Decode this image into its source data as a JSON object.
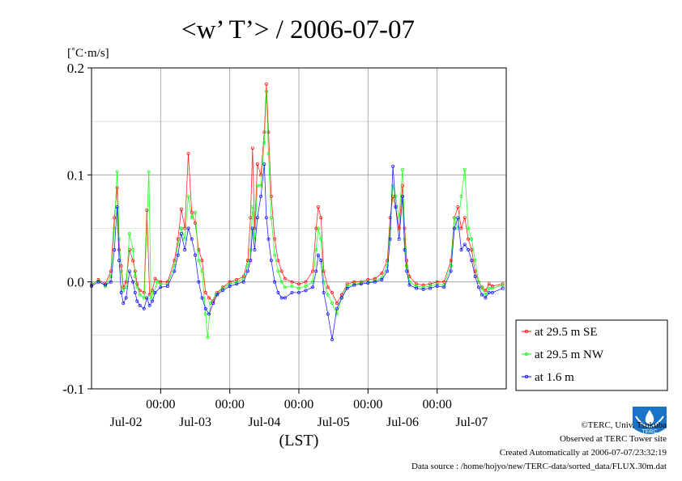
{
  "chart_data": {
    "type": "line",
    "title": "<w’ T’> / 2006-07-07",
    "ylabel": "[˚C·m/s]",
    "xlabel": "(LST)",
    "ylim": [
      -0.1,
      0.2
    ],
    "yticks": [
      "-0.1",
      "0.0",
      "0.1",
      "0.2"
    ],
    "xlim": [
      0,
      6
    ],
    "x_units": "days since 2006-07-01 00:00 LST",
    "time_ticks": [
      "00:00",
      "00:00",
      "00:00",
      "00:00",
      "00:00"
    ],
    "date_ticks": [
      "Jul-02",
      "Jul-03",
      "Jul-04",
      "Jul-05",
      "Jul-06",
      "Jul-07"
    ],
    "grid": true,
    "legend_position": "right",
    "series": [
      {
        "name": "at 29.5 m SE",
        "color": "#ff0000",
        "points": [
          [
            0.0,
            -0.003
          ],
          [
            0.1,
            0.002
          ],
          [
            0.2,
            -0.002
          ],
          [
            0.28,
            0.01
          ],
          [
            0.33,
            0.06
          ],
          [
            0.37,
            0.088
          ],
          [
            0.4,
            0.03
          ],
          [
            0.43,
            0.015
          ],
          [
            0.46,
            -0.005
          ],
          [
            0.5,
            0.0
          ],
          [
            0.55,
            0.03
          ],
          [
            0.6,
            0.02
          ],
          [
            0.63,
            0.01
          ],
          [
            0.66,
            -0.002
          ],
          [
            0.7,
            -0.008
          ],
          [
            0.76,
            -0.01
          ],
          [
            0.8,
            0.067
          ],
          [
            0.84,
            -0.012
          ],
          [
            0.88,
            -0.008
          ],
          [
            0.92,
            0.003
          ],
          [
            1.0,
            0.0
          ],
          [
            1.1,
            0.0
          ],
          [
            1.2,
            0.02
          ],
          [
            1.25,
            0.04
          ],
          [
            1.3,
            0.068
          ],
          [
            1.35,
            0.05
          ],
          [
            1.4,
            0.12
          ],
          [
            1.45,
            0.065
          ],
          [
            1.5,
            0.055
          ],
          [
            1.55,
            0.03
          ],
          [
            1.6,
            0.02
          ],
          [
            1.65,
            -0.01
          ],
          [
            1.7,
            -0.015
          ],
          [
            1.76,
            -0.018
          ],
          [
            1.82,
            -0.01
          ],
          [
            1.9,
            -0.005
          ],
          [
            2.0,
            0.0
          ],
          [
            2.1,
            0.002
          ],
          [
            2.2,
            0.005
          ],
          [
            2.26,
            0.02
          ],
          [
            2.3,
            0.06
          ],
          [
            2.33,
            0.125
          ],
          [
            2.36,
            0.05
          ],
          [
            2.4,
            0.11
          ],
          [
            2.45,
            0.1
          ],
          [
            2.5,
            0.14
          ],
          [
            2.53,
            0.185
          ],
          [
            2.56,
            0.14
          ],
          [
            2.6,
            0.08
          ],
          [
            2.65,
            0.04
          ],
          [
            2.7,
            0.02
          ],
          [
            2.75,
            0.01
          ],
          [
            2.8,
            0.003
          ],
          [
            2.9,
            0.0
          ],
          [
            3.0,
            -0.002
          ],
          [
            3.1,
            0.0
          ],
          [
            3.2,
            0.01
          ],
          [
            3.25,
            0.05
          ],
          [
            3.28,
            0.07
          ],
          [
            3.32,
            0.06
          ],
          [
            3.36,
            0.01
          ],
          [
            3.42,
            -0.005
          ],
          [
            3.48,
            -0.01
          ],
          [
            3.55,
            -0.02
          ],
          [
            3.62,
            -0.012
          ],
          [
            3.7,
            -0.002
          ],
          [
            3.8,
            0.0
          ],
          [
            3.9,
            0.0
          ],
          [
            4.0,
            0.002
          ],
          [
            4.1,
            0.003
          ],
          [
            4.2,
            0.008
          ],
          [
            4.28,
            0.02
          ],
          [
            4.32,
            0.06
          ],
          [
            4.36,
            0.08
          ],
          [
            4.4,
            0.07
          ],
          [
            4.45,
            0.05
          ],
          [
            4.5,
            0.09
          ],
          [
            4.53,
            0.05
          ],
          [
            4.56,
            0.02
          ],
          [
            4.6,
            0.005
          ],
          [
            4.7,
            -0.002
          ],
          [
            4.8,
            -0.003
          ],
          [
            4.9,
            -0.002
          ],
          [
            5.0,
            0.0
          ],
          [
            5.1,
            0.0
          ],
          [
            5.2,
            0.02
          ],
          [
            5.25,
            0.06
          ],
          [
            5.3,
            0.07
          ],
          [
            5.35,
            0.05
          ],
          [
            5.4,
            0.06
          ],
          [
            5.45,
            0.04
          ],
          [
            5.5,
            0.03
          ],
          [
            5.55,
            0.01
          ],
          [
            5.6,
            0.0
          ],
          [
            5.65,
            -0.005
          ],
          [
            5.7,
            -0.008
          ],
          [
            5.75,
            -0.002
          ],
          [
            5.8,
            -0.004
          ],
          [
            5.95,
            -0.002
          ]
        ]
      },
      {
        "name": "at 29.5 m NW",
        "color": "#00ff00",
        "points": [
          [
            0.0,
            -0.002
          ],
          [
            0.1,
            0.001
          ],
          [
            0.2,
            -0.004
          ],
          [
            0.28,
            0.005
          ],
          [
            0.33,
            0.05
          ],
          [
            0.37,
            0.103
          ],
          [
            0.4,
            0.04
          ],
          [
            0.43,
            0.01
          ],
          [
            0.46,
            -0.008
          ],
          [
            0.5,
            -0.005
          ],
          [
            0.55,
            0.045
          ],
          [
            0.6,
            0.03
          ],
          [
            0.63,
            0.005
          ],
          [
            0.66,
            -0.005
          ],
          [
            0.7,
            -0.012
          ],
          [
            0.76,
            -0.015
          ],
          [
            0.83,
            0.103
          ],
          [
            0.86,
            -0.016
          ],
          [
            0.9,
            -0.01
          ],
          [
            0.95,
            0.0
          ],
          [
            1.0,
            -0.002
          ],
          [
            1.1,
            -0.002
          ],
          [
            1.2,
            0.015
          ],
          [
            1.25,
            0.035
          ],
          [
            1.3,
            0.05
          ],
          [
            1.35,
            0.04
          ],
          [
            1.4,
            0.08
          ],
          [
            1.45,
            0.06
          ],
          [
            1.5,
            0.065
          ],
          [
            1.55,
            0.02
          ],
          [
            1.6,
            0.01
          ],
          [
            1.65,
            -0.03
          ],
          [
            1.68,
            -0.052
          ],
          [
            1.72,
            -0.02
          ],
          [
            1.8,
            -0.012
          ],
          [
            1.9,
            -0.006
          ],
          [
            2.0,
            -0.002
          ],
          [
            2.1,
            0.0
          ],
          [
            2.2,
            0.003
          ],
          [
            2.26,
            0.015
          ],
          [
            2.3,
            0.03
          ],
          [
            2.33,
            0.07
          ],
          [
            2.36,
            0.04
          ],
          [
            2.4,
            0.09
          ],
          [
            2.45,
            0.09
          ],
          [
            2.5,
            0.13
          ],
          [
            2.53,
            0.178
          ],
          [
            2.56,
            0.12
          ],
          [
            2.6,
            0.06
          ],
          [
            2.65,
            0.025
          ],
          [
            2.7,
            0.01
          ],
          [
            2.75,
            0.0
          ],
          [
            2.8,
            -0.005
          ],
          [
            2.9,
            -0.004
          ],
          [
            3.0,
            -0.006
          ],
          [
            3.1,
            -0.004
          ],
          [
            3.2,
            0.0
          ],
          [
            3.25,
            0.03
          ],
          [
            3.28,
            0.05
          ],
          [
            3.32,
            0.04
          ],
          [
            3.36,
            0.0
          ],
          [
            3.42,
            -0.012
          ],
          [
            3.48,
            -0.02
          ],
          [
            3.55,
            -0.03
          ],
          [
            3.62,
            -0.015
          ],
          [
            3.7,
            -0.004
          ],
          [
            3.8,
            -0.002
          ],
          [
            3.9,
            -0.001
          ],
          [
            4.0,
            0.0
          ],
          [
            4.1,
            0.001
          ],
          [
            4.2,
            0.004
          ],
          [
            4.28,
            0.015
          ],
          [
            4.32,
            0.05
          ],
          [
            4.36,
            0.09
          ],
          [
            4.4,
            0.08
          ],
          [
            4.45,
            0.06
          ],
          [
            4.5,
            0.105
          ],
          [
            4.53,
            0.04
          ],
          [
            4.56,
            0.015
          ],
          [
            4.6,
            0.0
          ],
          [
            4.7,
            -0.004
          ],
          [
            4.8,
            -0.005
          ],
          [
            4.9,
            -0.004
          ],
          [
            5.0,
            -0.002
          ],
          [
            5.1,
            -0.003
          ],
          [
            5.2,
            0.015
          ],
          [
            5.25,
            0.06
          ],
          [
            5.3,
            0.05
          ],
          [
            5.35,
            0.08
          ],
          [
            5.4,
            0.105
          ],
          [
            5.45,
            0.05
          ],
          [
            5.5,
            0.04
          ],
          [
            5.55,
            0.02
          ],
          [
            5.6,
            0.0
          ],
          [
            5.65,
            -0.006
          ],
          [
            5.7,
            -0.012
          ],
          [
            5.75,
            -0.006
          ],
          [
            5.8,
            -0.006
          ],
          [
            5.95,
            -0.003
          ]
        ]
      },
      {
        "name": "at 1.6 m",
        "color": "#0000ff",
        "points": [
          [
            0.0,
            -0.004
          ],
          [
            0.1,
            0.0
          ],
          [
            0.2,
            -0.003
          ],
          [
            0.28,
            0.0
          ],
          [
            0.33,
            0.03
          ],
          [
            0.37,
            0.07
          ],
          [
            0.4,
            0.02
          ],
          [
            0.43,
            -0.01
          ],
          [
            0.46,
            -0.02
          ],
          [
            0.5,
            -0.015
          ],
          [
            0.55,
            0.01
          ],
          [
            0.6,
            0.0
          ],
          [
            0.63,
            -0.01
          ],
          [
            0.66,
            -0.018
          ],
          [
            0.7,
            -0.022
          ],
          [
            0.76,
            -0.025
          ],
          [
            0.8,
            -0.015
          ],
          [
            0.84,
            -0.022
          ],
          [
            0.88,
            -0.018
          ],
          [
            0.92,
            -0.01
          ],
          [
            1.0,
            -0.005
          ],
          [
            1.1,
            -0.004
          ],
          [
            1.2,
            0.01
          ],
          [
            1.25,
            0.025
          ],
          [
            1.3,
            0.045
          ],
          [
            1.35,
            0.03
          ],
          [
            1.4,
            0.05
          ],
          [
            1.45,
            0.04
          ],
          [
            1.5,
            0.025
          ],
          [
            1.55,
            0.0
          ],
          [
            1.6,
            -0.015
          ],
          [
            1.65,
            -0.025
          ],
          [
            1.7,
            -0.03
          ],
          [
            1.76,
            -0.02
          ],
          [
            1.82,
            -0.012
          ],
          [
            1.9,
            -0.008
          ],
          [
            2.0,
            -0.004
          ],
          [
            2.1,
            -0.002
          ],
          [
            2.2,
            0.0
          ],
          [
            2.26,
            0.01
          ],
          [
            2.3,
            0.02
          ],
          [
            2.33,
            0.05
          ],
          [
            2.36,
            0.03
          ],
          [
            2.4,
            0.06
          ],
          [
            2.45,
            0.08
          ],
          [
            2.5,
            0.11
          ],
          [
            2.53,
            0.06
          ],
          [
            2.56,
            0.04
          ],
          [
            2.6,
            0.02
          ],
          [
            2.65,
            0.0
          ],
          [
            2.7,
            -0.01
          ],
          [
            2.75,
            -0.015
          ],
          [
            2.8,
            -0.015
          ],
          [
            2.9,
            -0.01
          ],
          [
            3.0,
            -0.01
          ],
          [
            3.1,
            -0.008
          ],
          [
            3.2,
            -0.005
          ],
          [
            3.25,
            0.01
          ],
          [
            3.28,
            0.025
          ],
          [
            3.32,
            0.02
          ],
          [
            3.36,
            -0.01
          ],
          [
            3.42,
            -0.03
          ],
          [
            3.48,
            -0.054
          ],
          [
            3.55,
            -0.025
          ],
          [
            3.62,
            -0.015
          ],
          [
            3.7,
            -0.006
          ],
          [
            3.8,
            -0.003
          ],
          [
            3.9,
            -0.002
          ],
          [
            4.0,
            -0.001
          ],
          [
            4.1,
            0.0
          ],
          [
            4.2,
            0.002
          ],
          [
            4.28,
            0.01
          ],
          [
            4.32,
            0.04
          ],
          [
            4.36,
            0.108
          ],
          [
            4.4,
            0.07
          ],
          [
            4.45,
            0.04
          ],
          [
            4.5,
            0.08
          ],
          [
            4.53,
            0.03
          ],
          [
            4.56,
            0.01
          ],
          [
            4.6,
            -0.003
          ],
          [
            4.7,
            -0.006
          ],
          [
            4.8,
            -0.007
          ],
          [
            4.9,
            -0.006
          ],
          [
            5.0,
            -0.004
          ],
          [
            5.1,
            -0.005
          ],
          [
            5.2,
            0.01
          ],
          [
            5.25,
            0.05
          ],
          [
            5.3,
            0.06
          ],
          [
            5.35,
            0.03
          ],
          [
            5.4,
            0.035
          ],
          [
            5.45,
            0.03
          ],
          [
            5.5,
            0.02
          ],
          [
            5.55,
            0.005
          ],
          [
            5.6,
            -0.005
          ],
          [
            5.65,
            -0.012
          ],
          [
            5.7,
            -0.015
          ],
          [
            5.75,
            -0.01
          ],
          [
            5.8,
            -0.01
          ],
          [
            5.95,
            -0.006
          ]
        ]
      }
    ]
  },
  "credits": {
    "copyright": "©TERC, Univ. Tsukuba",
    "observed": "Observed at TERC Tower site",
    "created": "Created Automatically at 2006-07-07/23:32:19",
    "source": "Data source : /home/hojyo/new/TERC-data/sorted_data/FLUX.30m.dat"
  },
  "logo": {
    "text": "TERC",
    "color": "#1a73c7"
  }
}
